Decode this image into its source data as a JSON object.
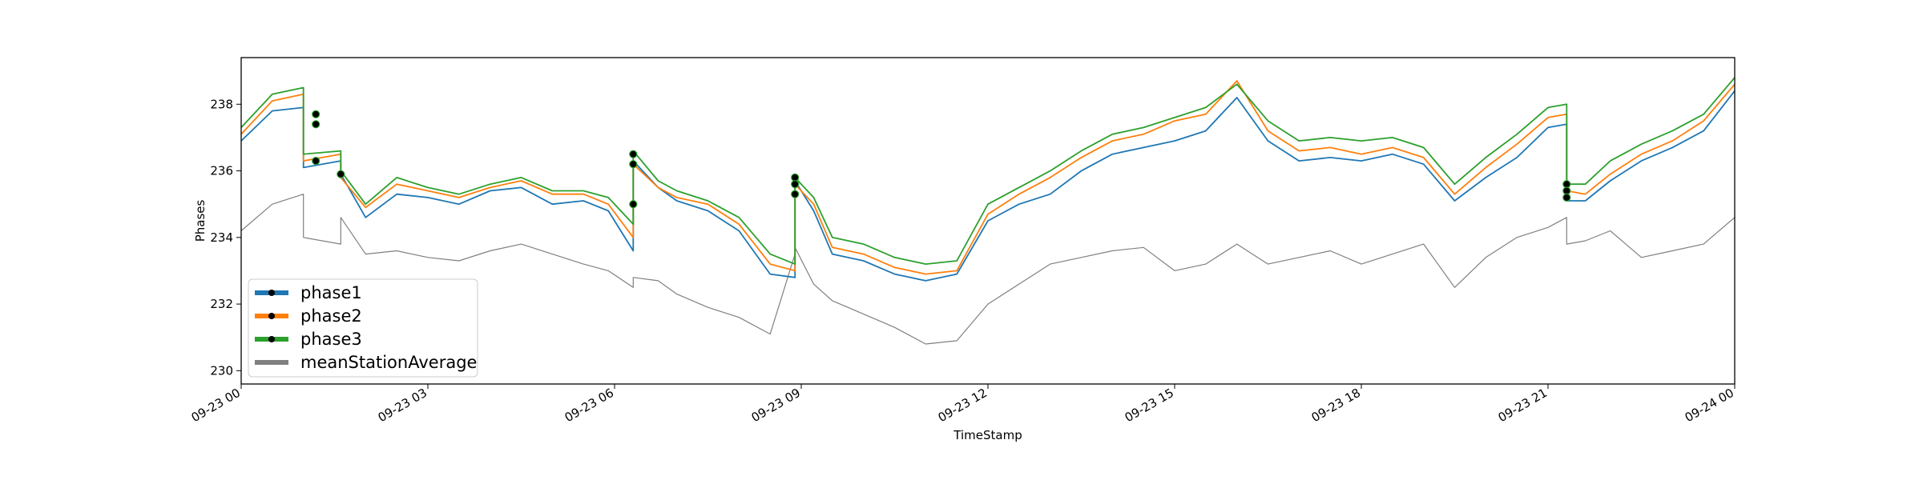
{
  "chart_data": {
    "type": "line",
    "title": "",
    "xlabel": "TimeStamp",
    "ylabel": "Phases",
    "xlim": [
      "09-23 00",
      "09-24 00"
    ],
    "ylim": [
      229.6,
      239.4
    ],
    "x_ticks": [
      "09-23 00",
      "09-23 03",
      "09-23 06",
      "09-23 09",
      "09-23 12",
      "09-23 15",
      "09-23 18",
      "09-23 21",
      "09-24 00"
    ],
    "y_ticks": [
      230,
      232,
      234,
      236,
      238
    ],
    "grid": false,
    "legend_position": "lower-left",
    "x_hours": [
      0,
      0.5,
      1.0,
      1.0,
      1.6,
      1.6,
      2.0,
      2.5,
      3.0,
      3.5,
      4.0,
      4.5,
      5.0,
      5.5,
      5.9,
      6.3,
      6.3,
      6.7,
      7.0,
      7.5,
      8.0,
      8.5,
      8.9,
      8.9,
      9.2,
      9.5,
      10.0,
      10.5,
      11.0,
      11.5,
      12.0,
      12.5,
      13.0,
      13.5,
      14.0,
      14.5,
      15.0,
      15.5,
      16.0,
      16.5,
      17.0,
      17.5,
      18.0,
      18.5,
      19.0,
      19.5,
      20.0,
      20.5,
      21.0,
      21.3,
      21.3,
      21.6,
      22.0,
      22.5,
      23.0,
      23.5,
      24.0
    ],
    "series": [
      {
        "name": "phase1",
        "color": "#1f77b4",
        "values": [
          236.9,
          237.8,
          237.9,
          236.1,
          236.3,
          235.9,
          234.6,
          235.3,
          235.2,
          235.0,
          235.4,
          235.5,
          235.0,
          235.1,
          234.8,
          233.6,
          236.3,
          235.5,
          235.1,
          234.8,
          234.2,
          232.9,
          232.8,
          235.7,
          234.8,
          233.5,
          233.3,
          232.9,
          232.7,
          232.9,
          234.5,
          235.0,
          235.3,
          236.0,
          236.5,
          236.7,
          236.9,
          237.2,
          238.2,
          236.9,
          236.3,
          236.4,
          236.3,
          236.5,
          236.2,
          235.1,
          235.8,
          236.4,
          237.3,
          237.4,
          235.1,
          235.1,
          235.7,
          236.3,
          236.7,
          237.2,
          238.4
        ]
      },
      {
        "name": "phase2",
        "color": "#ff7f0e",
        "values": [
          237.1,
          238.1,
          238.3,
          236.3,
          236.5,
          235.8,
          234.9,
          235.6,
          235.4,
          235.2,
          235.5,
          235.7,
          235.3,
          235.3,
          235.0,
          234.0,
          236.2,
          235.5,
          235.2,
          235.0,
          234.4,
          233.2,
          233.0,
          235.6,
          235.0,
          233.7,
          233.5,
          233.1,
          232.9,
          233.0,
          234.7,
          235.3,
          235.8,
          236.4,
          236.9,
          237.1,
          237.5,
          237.7,
          238.7,
          237.2,
          236.6,
          236.7,
          236.5,
          236.7,
          236.4,
          235.3,
          236.1,
          236.8,
          237.6,
          237.7,
          235.4,
          235.3,
          235.9,
          236.5,
          236.9,
          237.5,
          238.6
        ]
      },
      {
        "name": "phase3",
        "color": "#2ca02c",
        "values": [
          237.3,
          238.3,
          238.5,
          236.5,
          236.6,
          236.0,
          235.0,
          235.8,
          235.5,
          235.3,
          235.6,
          235.8,
          235.4,
          235.4,
          235.2,
          234.4,
          236.6,
          235.7,
          235.4,
          235.1,
          234.6,
          233.5,
          233.2,
          235.8,
          235.2,
          234.0,
          233.8,
          233.4,
          233.2,
          233.3,
          235.0,
          235.5,
          236.0,
          236.6,
          237.1,
          237.3,
          237.6,
          237.9,
          238.6,
          237.5,
          236.9,
          237.0,
          236.9,
          237.0,
          236.7,
          235.6,
          236.4,
          237.1,
          237.9,
          238.0,
          235.6,
          235.6,
          236.3,
          236.8,
          237.2,
          237.7,
          238.8
        ]
      },
      {
        "name": "meanStationAverage",
        "color": "#808080",
        "values": [
          234.2,
          235.0,
          235.3,
          234.0,
          233.8,
          234.6,
          233.5,
          233.6,
          233.4,
          233.3,
          233.6,
          233.8,
          233.5,
          233.2,
          233.0,
          232.5,
          232.8,
          232.7,
          232.3,
          231.9,
          231.6,
          231.1,
          233.5,
          233.7,
          232.6,
          232.1,
          231.7,
          231.3,
          230.8,
          230.9,
          232.0,
          232.6,
          233.2,
          233.4,
          233.6,
          233.7,
          233.0,
          233.2,
          233.8,
          233.2,
          233.4,
          233.6,
          233.2,
          233.5,
          233.8,
          232.5,
          233.4,
          234.0,
          234.3,
          234.6,
          233.8,
          233.9,
          234.2,
          233.4,
          233.6,
          233.8,
          234.6
        ]
      }
    ],
    "markers": {
      "x_hours": [
        1.2,
        1.2,
        1.2,
        1.6,
        6.3,
        6.3,
        6.3,
        8.9,
        8.9,
        8.9,
        21.3,
        21.3,
        21.3
      ],
      "values": [
        237.7,
        237.4,
        236.3,
        235.9,
        236.5,
        236.2,
        235.0,
        235.8,
        235.6,
        235.3,
        235.6,
        235.4,
        235.2
      ]
    }
  }
}
